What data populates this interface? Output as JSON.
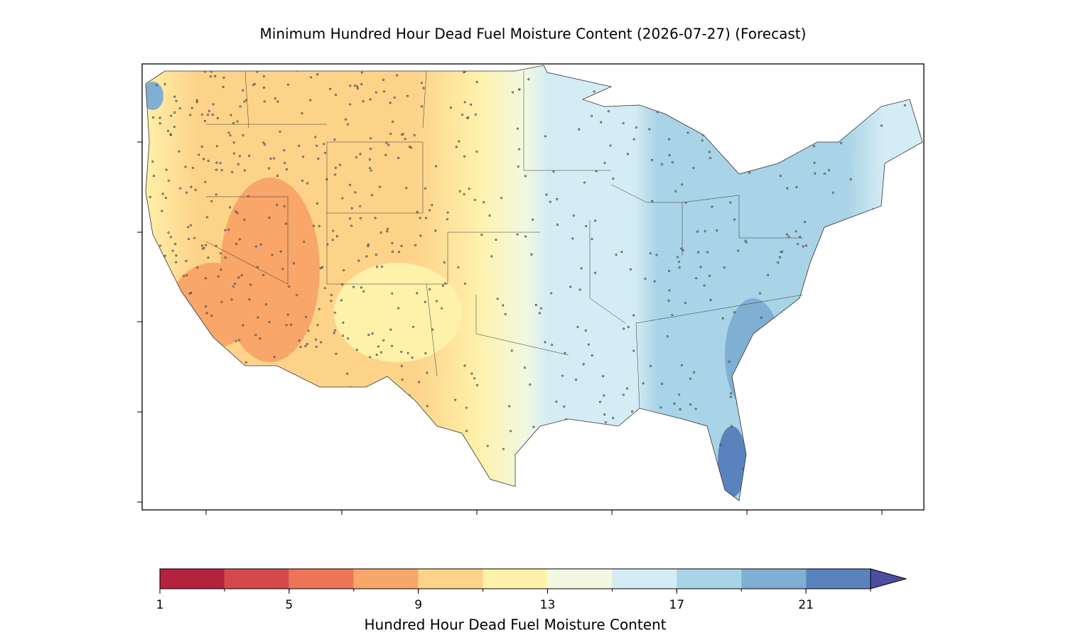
{
  "title": "Minimum Hundred Hour Dead Fuel Moisture Content (2026-07-27) (Forecast)",
  "colorbar": {
    "label": "Hundred Hour Dead Fuel Moisture Content",
    "bins": [
      1,
      3,
      5,
      7,
      9,
      11,
      13,
      15,
      17,
      19,
      21,
      23
    ],
    "colors": [
      "#b5223e",
      "#d6494a",
      "#ee7357",
      "#f9a66a",
      "#fdd38a",
      "#fef1aa",
      "#f2f8e1",
      "#d4ecf4",
      "#a9d3e6",
      "#7fafd2",
      "#5a83bd"
    ],
    "extend_color": "#4b4da0",
    "ticks": [
      1,
      5,
      9,
      13,
      17,
      21
    ]
  }
}
